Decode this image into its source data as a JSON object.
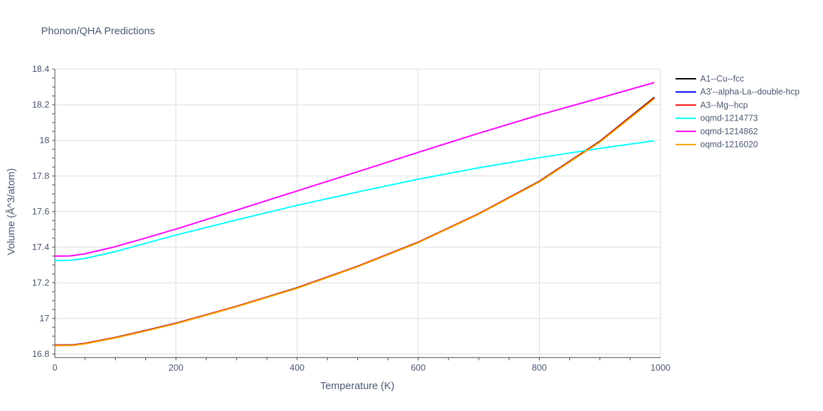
{
  "chart_data": {
    "type": "line",
    "title": "Phonon/QHA Predictions",
    "xlabel": "Temperature (K)",
    "ylabel": "Volume (Å^3/atom)",
    "xlim": [
      0,
      1000
    ],
    "ylim": [
      16.78,
      18.4
    ],
    "xticks": [
      0,
      200,
      400,
      600,
      800,
      1000
    ],
    "xtick_labels": [
      "0",
      "200",
      "400",
      "600",
      "800",
      "1000"
    ],
    "yticks": [
      16.8,
      17.0,
      17.2,
      17.4,
      17.6,
      17.8,
      18.0,
      18.2,
      18.4
    ],
    "ytick_labels": [
      "16.8",
      "17",
      "17.2",
      "17.4",
      "17.6",
      "17.8",
      "18",
      "18.2",
      "18.4"
    ],
    "grid": true,
    "legend_position": "right",
    "series": [
      {
        "name": "A1--Cu--fcc",
        "color": "#000000",
        "x": [
          0,
          30,
          50,
          100,
          150,
          200,
          300,
          400,
          500,
          600,
          700,
          800,
          900,
          990
        ],
        "y": [
          16.85,
          16.851,
          16.86,
          16.893,
          16.932,
          16.973,
          17.068,
          17.172,
          17.293,
          17.428,
          17.588,
          17.77,
          17.995,
          18.242
        ]
      },
      {
        "name": "A3'--alpha-La--double-hcp",
        "color": "#0000ff",
        "x": [
          0,
          30,
          50,
          100,
          150,
          200,
          300,
          400,
          500,
          600,
          700,
          800,
          900,
          990
        ],
        "y": [
          16.849,
          16.85,
          16.859,
          16.892,
          16.931,
          16.972,
          17.067,
          17.171,
          17.292,
          17.427,
          17.587,
          17.768,
          17.993,
          18.238
        ]
      },
      {
        "name": "A3--Mg--hcp",
        "color": "#ff0000",
        "x": [
          0,
          30,
          50,
          100,
          150,
          200,
          300,
          400,
          500,
          600,
          700,
          800,
          900,
          990
        ],
        "y": [
          16.849,
          16.85,
          16.859,
          16.892,
          16.931,
          16.972,
          17.067,
          17.171,
          17.292,
          17.427,
          17.587,
          17.768,
          17.993,
          18.238
        ]
      },
      {
        "name": "oqmd-1214773",
        "color": "#00ffff",
        "x": [
          0,
          25,
          50,
          100,
          150,
          200,
          300,
          400,
          500,
          600,
          700,
          800,
          900,
          990
        ],
        "y": [
          17.325,
          17.326,
          17.337,
          17.375,
          17.422,
          17.468,
          17.553,
          17.635,
          17.71,
          17.782,
          17.846,
          17.903,
          17.955,
          17.998
        ]
      },
      {
        "name": "oqmd-1214862",
        "color": "#ff00ff",
        "x": [
          0,
          25,
          50,
          100,
          150,
          200,
          300,
          400,
          500,
          600,
          700,
          800,
          900,
          990
        ],
        "y": [
          17.35,
          17.351,
          17.363,
          17.403,
          17.452,
          17.502,
          17.608,
          17.716,
          17.824,
          17.933,
          18.04,
          18.143,
          18.238,
          18.325
        ]
      },
      {
        "name": "oqmd-1216020",
        "color": "#ffa500",
        "x": [
          0,
          30,
          50,
          100,
          150,
          200,
          300,
          400,
          500,
          600,
          700,
          800,
          900,
          990
        ],
        "y": [
          16.847,
          16.848,
          16.857,
          16.89,
          16.929,
          16.97,
          17.065,
          17.169,
          17.29,
          17.425,
          17.585,
          17.766,
          17.99,
          18.234
        ]
      }
    ]
  }
}
